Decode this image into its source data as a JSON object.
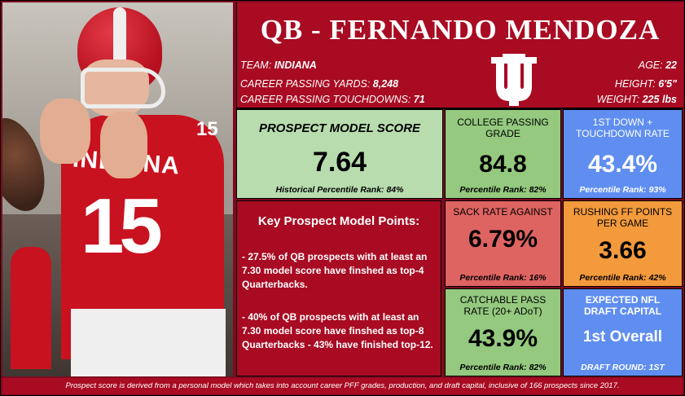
{
  "header": {
    "title": "QB - FERNANDO MENDOZA",
    "team_label": "TEAM:",
    "team": "INDIANA",
    "passing_yards_label": "CAREER PASSING YARDS:",
    "passing_yards": "8,248",
    "passing_tds_label": "CAREER PASSING TOUCHDOWNS:",
    "passing_tds": "71",
    "age_label": "AGE:",
    "age": "22",
    "height_label": "HEIGHT:",
    "height": "6'5\"",
    "weight_label": "WEIGHT:",
    "weight": "225 lbs"
  },
  "photo": {
    "jersey_text": "INDIANA",
    "jersey_number": "15"
  },
  "prospect_score": {
    "label": "PROSPECT MODEL SCORE",
    "value": "7.64",
    "rank": "Historical Percentile Rank: 84%"
  },
  "college_passing_grade": {
    "label": "COLLEGE PASSING GRADE",
    "value": "84.8",
    "rank": "Percentile Rank: 82%"
  },
  "first_down_td_rate": {
    "label": "1ST DOWN + TOUCHDOWN RATE",
    "value": "43.4%",
    "rank": "Percentile Rank: 93%"
  },
  "key_points": {
    "title": "Key Prospect Model Points:",
    "point1": "- 27.5% of QB prospects with at least an 7.30 model score have finshed as top-4 Quarterbacks.",
    "point2": "- 40% of QB prospects with at least an 7.30 model score have finshed as top-8 Quarterbacks - 43% have finished top-12."
  },
  "sack_rate": {
    "label": "SACK RATE AGAINST",
    "value": "6.79%",
    "rank": "Percentile Rank: 16%"
  },
  "rushing_ff": {
    "label": "RUSHING FF POINTS PER GAME",
    "value": "3.66",
    "rank": "Percentile Rank: 42%"
  },
  "catchable_pass": {
    "label": "CATCHABLE PASS RATE (20+ ADoT)",
    "value": "43.9%",
    "rank": "Percentile Rank: 82%"
  },
  "draft_capital": {
    "label": "EXPECTED NFL DRAFT CAPITAL",
    "value": "1st Overall",
    "rank": "DRAFT ROUND: 1ST"
  },
  "footer": {
    "text": "Prospect score is derived from a personal model which takes into account career PFF grades, production, and draft capital, inclusive of 166 prospects since 2017."
  },
  "colors": {
    "crimson": "#a80b22",
    "green_light": "#b8dcae",
    "green": "#94c97f",
    "blue": "#5f8ef0",
    "red": "#de6462",
    "orange": "#f39a3c"
  }
}
